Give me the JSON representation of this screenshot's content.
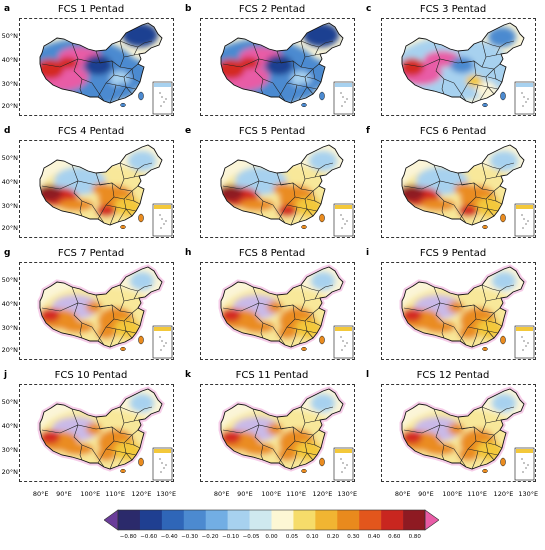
{
  "panels": [
    {
      "letter": "a",
      "title": "FCS 1 Pentad",
      "scheme": "strong_neg_east"
    },
    {
      "letter": "b",
      "title": "FCS 2 Pentad",
      "scheme": "strong_neg_east"
    },
    {
      "letter": "c",
      "title": "FCS 3 Pentad",
      "scheme": "mixed_blue"
    },
    {
      "letter": "d",
      "title": "FCS 4 Pentad",
      "scheme": "warm"
    },
    {
      "letter": "e",
      "title": "FCS 5 Pentad",
      "scheme": "warm"
    },
    {
      "letter": "f",
      "title": "FCS 6 Pentad",
      "scheme": "warm"
    },
    {
      "letter": "g",
      "title": "FCS 7 Pentad",
      "scheme": "warm_pale"
    },
    {
      "letter": "h",
      "title": "FCS 8 Pentad",
      "scheme": "warm_pale"
    },
    {
      "letter": "i",
      "title": "FCS 9 Pentad",
      "scheme": "warm_pale"
    },
    {
      "letter": "j",
      "title": "FCS 10 Pentad",
      "scheme": "warm_pale"
    },
    {
      "letter": "k",
      "title": "FCS 11 Pentad",
      "scheme": "warm_pale"
    },
    {
      "letter": "l",
      "title": "FCS 12 Pentad",
      "scheme": "warm_pale"
    }
  ],
  "lat_labels": [
    "50°N",
    "40°N",
    "30°N",
    "20°N"
  ],
  "lon_labels": [
    "80°E",
    "90°E",
    "100°E",
    "110°E",
    "120°E",
    "130°E"
  ],
  "colorbar": {
    "ticks": [
      "−0.80",
      "−0.60",
      "−0.40",
      "−0.30",
      "−0.20",
      "−0.10",
      "−0.05",
      "0.00",
      "0.05",
      "0.10",
      "0.20",
      "0.30",
      "0.40",
      "0.60",
      "0.80"
    ],
    "low_extend_color": "#6a3d9a",
    "high_extend_color": "#e85ca6",
    "colors": [
      "#2b2a6b",
      "#1f3f91",
      "#2f66b8",
      "#4c8ad0",
      "#72aee4",
      "#a7d1ef",
      "#cfe9ef",
      "#fdf7d4",
      "#f6dc6a",
      "#f1b532",
      "#e98a1d",
      "#e3561c",
      "#c9261f",
      "#8e1a22"
    ]
  },
  "palette": {
    "pink": "#e85ca6",
    "red": "#d42a22",
    "dark_red": "#8e1a22",
    "orange": "#ea8c20",
    "yellow": "#f3c83a",
    "light_yellow": "#f8e89a",
    "pale": "#fbf5d8",
    "light_blue": "#a7d1ef",
    "blue": "#4c8ad0",
    "dark_blue": "#1f3f91",
    "lavender": "#c9b9e8",
    "pale_pink": "#f6cde8"
  }
}
